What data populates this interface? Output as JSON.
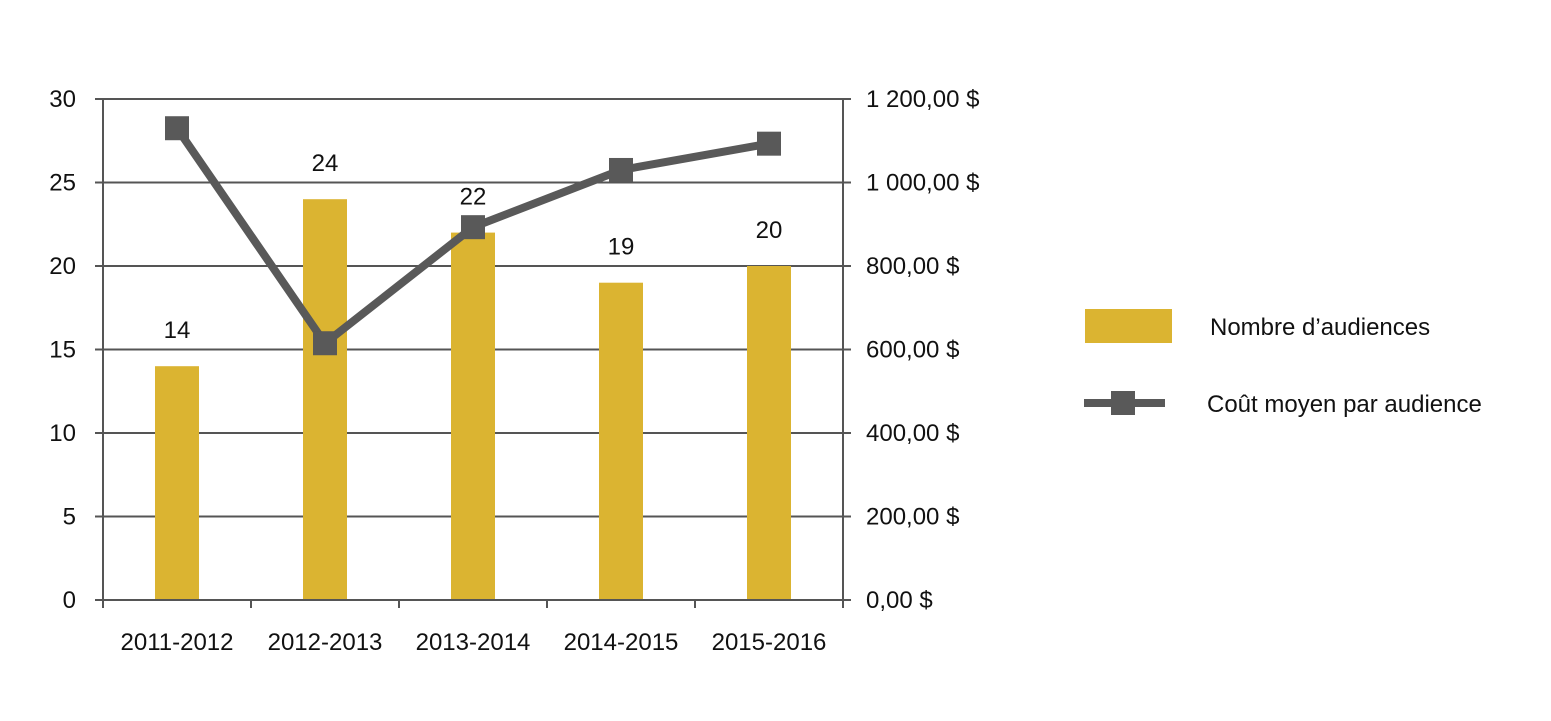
{
  "chart_data": {
    "type": "bar",
    "categories": [
      "2011-2012",
      "2012-2013",
      "2013-2014",
      "2014-2015",
      "2015-2016"
    ],
    "series": [
      {
        "name": "Nombre d’audiences",
        "type": "bar",
        "axis": "left",
        "values": [
          14,
          24,
          22,
          19,
          20
        ],
        "data_labels": [
          "14",
          "24",
          "22",
          "19",
          "20"
        ],
        "color": "#DBB431"
      },
      {
        "name": "Coût moyen par audience",
        "type": "line",
        "axis": "right",
        "marker": "square",
        "values": [
          1130,
          615,
          893,
          1030,
          1093
        ],
        "color": "#595959"
      }
    ],
    "y_left": {
      "ylim": [
        0,
        30
      ],
      "ticks": [
        0,
        5,
        10,
        15,
        20,
        25,
        30
      ],
      "tick_labels": [
        "0",
        "5",
        "10",
        "15",
        "20",
        "25",
        "30"
      ]
    },
    "y_right": {
      "ylim": [
        0,
        1200
      ],
      "ticks": [
        0,
        200,
        400,
        600,
        800,
        1000,
        1200
      ],
      "tick_labels": [
        "0,00 $",
        "200,00 $",
        "400,00 $",
        "600,00 $",
        "800,00 $",
        "1 000,00 $",
        "1 200,00 $"
      ]
    },
    "grid": true,
    "gridline_color": "#555555",
    "legend": "right"
  }
}
